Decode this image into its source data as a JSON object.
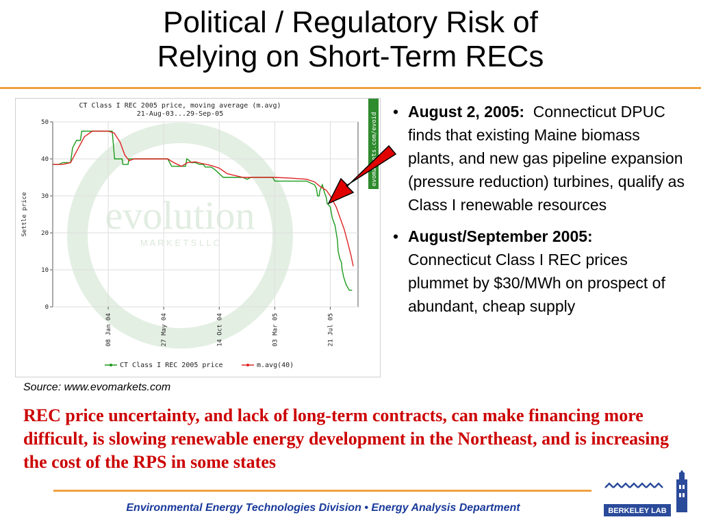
{
  "slide": {
    "title_line1": "Political / Regulatory Risk of",
    "title_line2": "Relying on Short-Term RECs",
    "source": "Source: www.evomarkets.com",
    "conclusion": "REC price uncertainty, and lack of long-term contracts, can make financing more difficult, is slowing renewable energy development in the Northeast, and is increasing the cost of the RPS in some states",
    "footer": "Environmental Energy Technologies Division  •  Energy Analysis Department",
    "footer_accent": "#1a3a9a",
    "title_rule_color": "#f0a040",
    "conclusion_color": "#cc0000"
  },
  "bullets": [
    {
      "bold": "August 2, 2005:",
      "text": "Connecticut DPUC finds that existing Maine biomass plants, and new gas pipeline expansion (pressure reduction) turbines, qualify as Class I renewable resources"
    },
    {
      "bold": "August/September 2005:",
      "text": "Connecticut Class I REC prices plummet by $30/MWh on prospect of abundant, cheap supply"
    }
  ],
  "chart_watermark": {
    "brand": "evolution",
    "brand_sub": "M A R K E T S   L L C",
    "side_tag": "evomarkets.com/evoid"
  },
  "logo": {
    "text": "BERKELEY LAB"
  },
  "chart_data": {
    "type": "line",
    "title": "CT Class I REC 2005 price, moving average (m.avg)",
    "subtitle": "21-Aug-03...29-Sep-05",
    "ylabel": "Settle price",
    "ylim": [
      0,
      50
    ],
    "yticks": [
      0,
      10,
      20,
      30,
      40,
      50
    ],
    "xlim": [
      0,
      770
    ],
    "xticks": [
      {
        "label": "08 Jan 04",
        "day": 140
      },
      {
        "label": "27 May 04",
        "day": 280
      },
      {
        "label": "14 Oct 04",
        "day": 420
      },
      {
        "label": "03 Mar 05",
        "day": 560
      },
      {
        "label": "21 Jul 05",
        "day": 700
      }
    ],
    "grid": true,
    "legend_position": "bottom",
    "series": [
      {
        "name": "CT Class I REC 2005  price",
        "color": "#1a9a1a",
        "points": [
          [
            0,
            38.5
          ],
          [
            15,
            38.5
          ],
          [
            25,
            39
          ],
          [
            45,
            39
          ],
          [
            50,
            43
          ],
          [
            60,
            45
          ],
          [
            70,
            45
          ],
          [
            73,
            47.5
          ],
          [
            130,
            47.5
          ],
          [
            150,
            47.5
          ],
          [
            156,
            40
          ],
          [
            175,
            40
          ],
          [
            177,
            38.5
          ],
          [
            190,
            38.5
          ],
          [
            192,
            40
          ],
          [
            290,
            40
          ],
          [
            300,
            38
          ],
          [
            335,
            38
          ],
          [
            338,
            40
          ],
          [
            345,
            39.5
          ],
          [
            350,
            39
          ],
          [
            360,
            39
          ],
          [
            370,
            38.5
          ],
          [
            380,
            38.5
          ],
          [
            385,
            37.8
          ],
          [
            400,
            37.8
          ],
          [
            410,
            37
          ],
          [
            430,
            35
          ],
          [
            460,
            35
          ],
          [
            470,
            35
          ],
          [
            480,
            35
          ],
          [
            490,
            34.5
          ],
          [
            500,
            35
          ],
          [
            540,
            35
          ],
          [
            555,
            35
          ],
          [
            560,
            34
          ],
          [
            600,
            34
          ],
          [
            640,
            34
          ],
          [
            660,
            33
          ],
          [
            665,
            32
          ],
          [
            668,
            30
          ],
          [
            672,
            30
          ],
          [
            674,
            31.5
          ],
          [
            680,
            33
          ],
          [
            685,
            31
          ],
          [
            690,
            29.5
          ],
          [
            692,
            28
          ],
          [
            700,
            27
          ],
          [
            705,
            24
          ],
          [
            712,
            22
          ],
          [
            718,
            18
          ],
          [
            720,
            15
          ],
          [
            724,
            13
          ],
          [
            728,
            12
          ],
          [
            730,
            10
          ],
          [
            734,
            8
          ],
          [
            740,
            6
          ],
          [
            748,
            4.5
          ],
          [
            755,
            4.5
          ]
        ]
      },
      {
        "name": "m.avg(40)",
        "color": "#dd2222",
        "points": [
          [
            0,
            38.5
          ],
          [
            25,
            38.5
          ],
          [
            45,
            39
          ],
          [
            60,
            42
          ],
          [
            80,
            46
          ],
          [
            100,
            47.5
          ],
          [
            140,
            47.5
          ],
          [
            155,
            47
          ],
          [
            170,
            44.5
          ],
          [
            182,
            41
          ],
          [
            193,
            39.5
          ],
          [
            205,
            40
          ],
          [
            290,
            40
          ],
          [
            305,
            39
          ],
          [
            325,
            38
          ],
          [
            340,
            39
          ],
          [
            360,
            39.2
          ],
          [
            375,
            38.8
          ],
          [
            400,
            38.2
          ],
          [
            420,
            37.5
          ],
          [
            440,
            36
          ],
          [
            460,
            35.5
          ],
          [
            480,
            35
          ],
          [
            560,
            35
          ],
          [
            600,
            34.8
          ],
          [
            640,
            34.5
          ],
          [
            660,
            33.8
          ],
          [
            675,
            32.5
          ],
          [
            690,
            31.5
          ],
          [
            700,
            30
          ],
          [
            715,
            27
          ],
          [
            725,
            24
          ],
          [
            735,
            21
          ],
          [
            745,
            17
          ],
          [
            752,
            14
          ],
          [
            758,
            11
          ]
        ]
      }
    ],
    "annotation": {
      "type": "arrow",
      "points_to_day": 694,
      "points_to_value": 29.5
    }
  }
}
